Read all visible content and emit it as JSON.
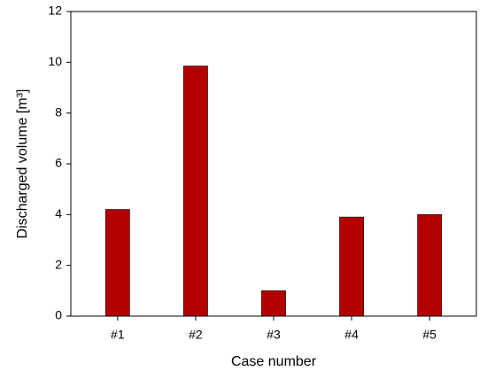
{
  "chart_data": {
    "type": "bar",
    "x_label": "Case number",
    "y_label": "Discharged volume [m³]",
    "categories": [
      "#1",
      "#2",
      "#3",
      "#4",
      "#5"
    ],
    "values": [
      4.2,
      9.85,
      1.0,
      3.9,
      4.0
    ],
    "color": "#b30000",
    "ylim": [
      0,
      12
    ],
    "yticks": [
      0,
      2,
      4,
      6,
      8,
      10,
      12
    ],
    "grid": false
  }
}
